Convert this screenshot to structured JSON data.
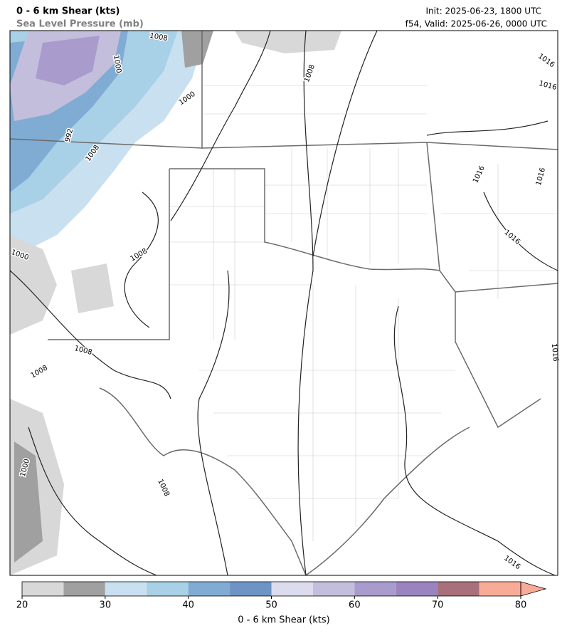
{
  "header": {
    "title": "0 - 6 km Shear (kts)",
    "subtitle": "Sea Level Pressure (mb)",
    "init": "Init: 2025-06-23, 1800 UTC",
    "valid": "f54, Valid: 2025-06-26, 0000 UTC"
  },
  "map": {
    "contour_labels": [
      "1008",
      "1000",
      "1000",
      "992",
      "1008",
      "1008",
      "1016",
      "1016",
      "1016",
      "1016",
      "1016",
      "1008",
      "1000",
      "1008",
      "1008",
      "1000",
      "1008",
      "1016",
      "1016"
    ]
  },
  "colorbar": {
    "label": "0 - 6 km Shear (kts)",
    "bounds": [
      20,
      25,
      30,
      35,
      40,
      45,
      50,
      55,
      60,
      65,
      70,
      75,
      80
    ],
    "colors": [
      "#d8d8d8",
      "#a0a0a0",
      "#c8e0f0",
      "#a8d0e6",
      "#80acd4",
      "#6d94c4",
      "#dcdcee",
      "#c4bedd",
      "#a99ccc",
      "#9b83bf",
      "#a8707a",
      "#f8ab96"
    ],
    "extend_color": "#f8ab96",
    "ticks": [
      20,
      30,
      40,
      50,
      60,
      70,
      80
    ]
  }
}
